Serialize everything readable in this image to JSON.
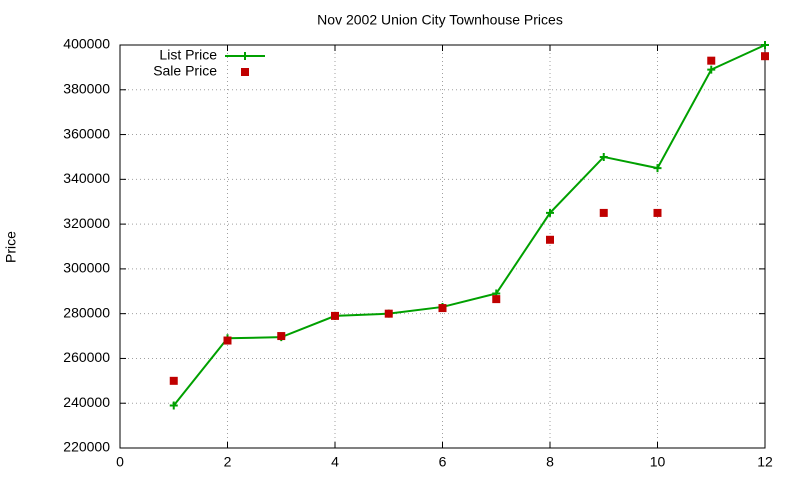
{
  "chart_data": {
    "type": "line",
    "title": "Nov 2002 Union City Townhouse Prices",
    "y_label": "Price",
    "x": [
      1,
      2,
      3,
      4,
      5,
      6,
      7,
      8,
      9,
      10,
      11,
      12
    ],
    "series": [
      {
        "name": "List Price",
        "color": "#00a000",
        "style": "linespoints",
        "values": [
          239000,
          269000,
          269500,
          279000,
          280000,
          283000,
          289000,
          325000,
          350000,
          345000,
          389000,
          400000
        ]
      },
      {
        "name": "Sale Price",
        "color": "#c00000",
        "style": "points",
        "values": [
          250000,
          268000,
          270000,
          279000,
          280000,
          282500,
          286500,
          313000,
          325000,
          325000,
          393000,
          395000
        ]
      }
    ],
    "xlim": [
      0,
      12
    ],
    "xticks": [
      0,
      2,
      4,
      6,
      8,
      10,
      12
    ],
    "ylim": [
      220000,
      400000
    ],
    "yticks": [
      220000,
      240000,
      260000,
      280000,
      300000,
      320000,
      340000,
      360000,
      380000,
      400000
    ],
    "grid": true,
    "legend": "top-left"
  }
}
